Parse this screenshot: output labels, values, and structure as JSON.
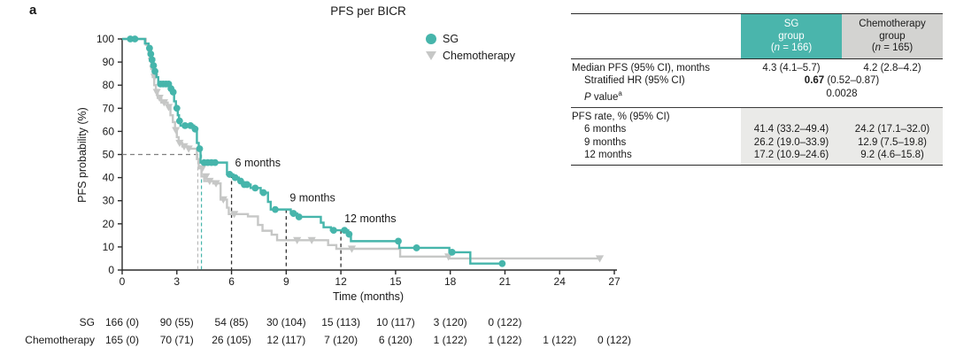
{
  "panel_label": "a",
  "chart": {
    "title": "PFS per BICR",
    "xlabel": "Time (months)",
    "ylabel": "PFS probability (%)"
  },
  "chart_data": {
    "type": "line",
    "subtype": "kaplan-meier-step",
    "title": "PFS per BICR",
    "xlabel": "Time (months)",
    "ylabel": "PFS probability (%)",
    "xlim": [
      0,
      27
    ],
    "ylim": [
      0,
      100
    ],
    "xticks": [
      0,
      3,
      6,
      9,
      12,
      15,
      18,
      21,
      24,
      27
    ],
    "yticks": [
      0,
      10,
      20,
      30,
      40,
      50,
      60,
      70,
      80,
      90,
      100
    ],
    "grid": false,
    "legend_position": "upper-right-inside",
    "axis_color": "#2b2b2b",
    "series": [
      {
        "name": "Chemotherapy",
        "color": "#c6c7c6",
        "marker": "triangle-down",
        "start": 100,
        "end_time": 26.2,
        "steps": [
          [
            1.3,
            97.5
          ],
          [
            1.45,
            94
          ],
          [
            1.52,
            90.5
          ],
          [
            1.6,
            87
          ],
          [
            1.68,
            83.5
          ],
          [
            1.76,
            80
          ],
          [
            1.85,
            77
          ],
          [
            1.95,
            74.5
          ],
          [
            2.15,
            72.5
          ],
          [
            2.5,
            70.5
          ],
          [
            2.65,
            67
          ],
          [
            2.78,
            64
          ],
          [
            2.9,
            60.5
          ],
          [
            3.0,
            57.5
          ],
          [
            3.1,
            55
          ],
          [
            3.3,
            53.5
          ],
          [
            3.6,
            52.5
          ],
          [
            4.1,
            48
          ],
          [
            4.2,
            44
          ],
          [
            4.35,
            40.5
          ],
          [
            4.5,
            38.5
          ],
          [
            5.0,
            37.5
          ],
          [
            5.4,
            30.5
          ],
          [
            5.75,
            27
          ],
          [
            5.85,
            24.2
          ],
          [
            6.9,
            23.2
          ],
          [
            7.45,
            19.5
          ],
          [
            7.7,
            17
          ],
          [
            8.2,
            15.3
          ],
          [
            8.5,
            12.9
          ],
          [
            11.3,
            10.8
          ],
          [
            11.75,
            9.2
          ],
          [
            15.25,
            5.8
          ],
          [
            17.95,
            5.0
          ]
        ],
        "censors": [
          [
            1.62,
            90.5
          ],
          [
            1.7,
            87
          ],
          [
            1.78,
            83.5
          ],
          [
            1.9,
            77
          ],
          [
            2.05,
            74.5
          ],
          [
            2.3,
            72.5
          ],
          [
            2.55,
            70.5
          ],
          [
            2.95,
            60.5
          ],
          [
            3.15,
            55
          ],
          [
            3.4,
            53.5
          ],
          [
            3.65,
            52.5
          ],
          [
            4.4,
            44
          ],
          [
            4.6,
            40.5
          ],
          [
            4.8,
            38.5
          ],
          [
            5.15,
            37.5
          ],
          [
            5.55,
            30.5
          ],
          [
            6.15,
            24.2
          ],
          [
            9.6,
            12.9
          ],
          [
            10.4,
            12.9
          ],
          [
            12.6,
            9.2
          ],
          [
            17.9,
            5.8
          ],
          [
            26.2,
            5.0
          ]
        ]
      },
      {
        "name": "SG",
        "color": "#46b5ab",
        "marker": "circle",
        "start": 100,
        "end_time": 20.85,
        "steps": [
          [
            1.25,
            98
          ],
          [
            1.45,
            96
          ],
          [
            1.55,
            93.5
          ],
          [
            1.62,
            91
          ],
          [
            1.7,
            88.5
          ],
          [
            1.78,
            86
          ],
          [
            1.88,
            83.5
          ],
          [
            1.98,
            80.5
          ],
          [
            2.6,
            78.5
          ],
          [
            2.75,
            77
          ],
          [
            2.85,
            73
          ],
          [
            2.95,
            70
          ],
          [
            3.05,
            67
          ],
          [
            3.12,
            64.5
          ],
          [
            3.2,
            62.5
          ],
          [
            3.95,
            61
          ],
          [
            4.1,
            55
          ],
          [
            4.2,
            52.5
          ],
          [
            4.3,
            46.5
          ],
          [
            5.75,
            41.4
          ],
          [
            6.1,
            40
          ],
          [
            6.4,
            38.5
          ],
          [
            6.6,
            37
          ],
          [
            7.05,
            35.5
          ],
          [
            7.6,
            33.5
          ],
          [
            8.0,
            29.5
          ],
          [
            8.15,
            26.2
          ],
          [
            9.25,
            24.5
          ],
          [
            9.6,
            23
          ],
          [
            10.9,
            20.5
          ],
          [
            11.05,
            18.5
          ],
          [
            11.45,
            17.2
          ],
          [
            12.4,
            15.5
          ],
          [
            12.55,
            12.5
          ],
          [
            15.2,
            9.6
          ],
          [
            17.95,
            7.7
          ],
          [
            19.1,
            2.8
          ]
        ],
        "censors": [
          [
            0.45,
            100
          ],
          [
            0.7,
            100
          ],
          [
            1.5,
            96
          ],
          [
            1.57,
            93.5
          ],
          [
            1.64,
            91
          ],
          [
            1.72,
            88.5
          ],
          [
            1.8,
            86
          ],
          [
            2.1,
            80.5
          ],
          [
            2.25,
            80.5
          ],
          [
            2.4,
            80.5
          ],
          [
            2.55,
            80.5
          ],
          [
            2.68,
            78.5
          ],
          [
            2.8,
            77
          ],
          [
            3.0,
            70
          ],
          [
            3.15,
            64.5
          ],
          [
            3.45,
            62.5
          ],
          [
            3.75,
            62.5
          ],
          [
            4.0,
            61
          ],
          [
            4.25,
            52.5
          ],
          [
            4.5,
            46.5
          ],
          [
            4.7,
            46.5
          ],
          [
            4.9,
            46.5
          ],
          [
            5.1,
            46.5
          ],
          [
            5.9,
            41.4
          ],
          [
            6.2,
            40
          ],
          [
            6.5,
            38.5
          ],
          [
            6.7,
            37
          ],
          [
            6.85,
            37
          ],
          [
            7.3,
            35.5
          ],
          [
            7.75,
            33.5
          ],
          [
            8.4,
            26.2
          ],
          [
            9.4,
            24.5
          ],
          [
            9.7,
            23
          ],
          [
            11.6,
            17.2
          ],
          [
            12.2,
            17.2
          ],
          [
            12.45,
            15.5
          ],
          [
            15.15,
            12.5
          ],
          [
            16.15,
            9.6
          ],
          [
            18.1,
            7.7
          ],
          [
            20.85,
            2.8
          ]
        ]
      }
    ],
    "annotations": {
      "fifty_line": {
        "y": 50,
        "x0": 0,
        "x1": 4.35,
        "color": "#808080"
      },
      "median_vlines": [
        {
          "x": 4.15,
          "y_top": 50,
          "color": "#b8b8b8"
        },
        {
          "x": 4.35,
          "y_top": 50,
          "color": "#46b5ab"
        }
      ],
      "month_lines": [
        {
          "x": 6,
          "y_top": 41.4,
          "label": "6 months"
        },
        {
          "x": 9,
          "y_top": 26.2,
          "label": "9 months"
        },
        {
          "x": 12,
          "y_top": 17.2,
          "label": "12 months"
        }
      ],
      "month_line_color": "#333333"
    }
  },
  "legend": {
    "items": [
      {
        "label": "SG",
        "marker": "circle",
        "color": "#46b5ab"
      },
      {
        "label": "Chemotherapy",
        "marker": "triangle-down",
        "color": "#c6c7c6"
      }
    ]
  },
  "risk_table": {
    "rows": [
      {
        "label": "SG",
        "values": [
          "166 (0)",
          "90 (55)",
          "54 (85)",
          "30 (104)",
          "15 (113)",
          "10 (117)",
          "3 (120)",
          "0 (122)"
        ]
      },
      {
        "label": "Chemotherapy",
        "values": [
          "165 (0)",
          "70 (71)",
          "26 (105)",
          "12 (117)",
          "7 (120)",
          "6 (120)",
          "1 (122)",
          "1 (122)",
          "1 (122)",
          "0 (122)"
        ]
      }
    ]
  },
  "stats_table": {
    "columns": [
      {
        "line1": "SG",
        "line2": "group",
        "n_open": "(",
        "n": "n",
        "n_rest": " = 166)",
        "color": "#4ab5ac"
      },
      {
        "line1": "Chemotherapy",
        "line2": "group",
        "n_open": "(",
        "n": "n",
        "n_rest": " = 165)",
        "color": "#d3d3d1"
      }
    ],
    "rows": [
      {
        "label": "Median PFS (95% CI), months",
        "sg": "4.3 (4.1–5.7)",
        "chemo": "4.2 (2.8–4.2)"
      },
      {
        "label": "Stratified HR (95% CI)",
        "hr_bold": "0.67",
        "hr_rest": " (0.52–0.87)"
      },
      {
        "p_italic": "P",
        "p_rest": " value",
        "p_sup": "a",
        "span": "0.0028"
      },
      {
        "label": "PFS rate, % (95% CI)"
      },
      {
        "label": "6 months",
        "sg": "41.4 (33.2–49.4)",
        "chemo": "24.2 (17.1–32.0)"
      },
      {
        "label": "9 months",
        "sg": "26.2 (19.0–33.9)",
        "chemo": "12.9 (7.5–19.8)"
      },
      {
        "label": "12 months",
        "sg": "17.2 (10.9–24.6)",
        "chemo": "9.2 (4.6–15.8)"
      }
    ]
  }
}
